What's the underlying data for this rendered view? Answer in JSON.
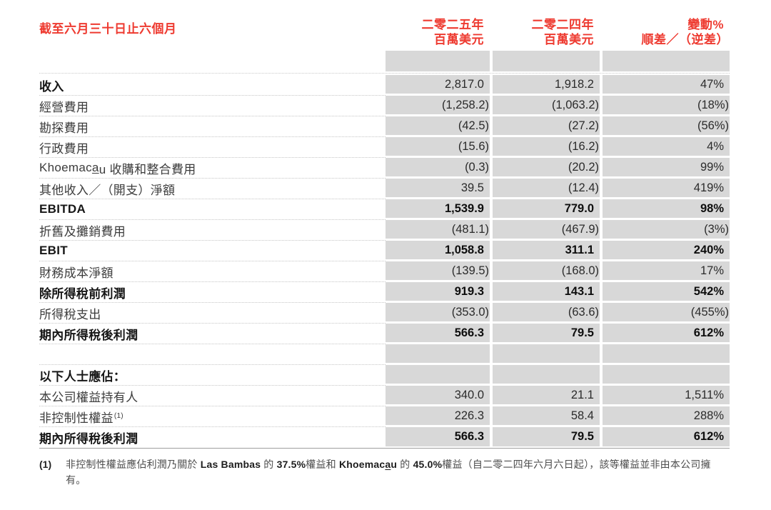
{
  "colors": {
    "accent_red": "#ee3a30",
    "cell_gray": "#d8d8d8"
  },
  "table": {
    "title": "截至六月三十日止六個月",
    "columns": [
      {
        "line1": "二零二五年",
        "line2": "百萬美元"
      },
      {
        "line1": "二零二四年",
        "line2": "百萬美元"
      },
      {
        "line1": "變動%",
        "line2": "順差／（逆差）"
      }
    ],
    "rows": [
      {
        "label": "收入",
        "label_bold": true,
        "v2025": "2,817.0",
        "v2024": "1,918.2",
        "change": "47%"
      },
      {
        "label": "經營費用",
        "v2025": "(1,258.2)",
        "v2024": "(1,063.2)",
        "change": "(18%)"
      },
      {
        "label": "勘探費用",
        "v2025": "(42.5)",
        "v2024": "(27.2)",
        "change": "(56%)"
      },
      {
        "label": "行政費用",
        "v2025": "(15.6)",
        "v2024": "(16.2)",
        "change": "4%"
      },
      {
        "label_parts": [
          {
            "t": "Khoemac"
          },
          {
            "t": "a",
            "u": true
          },
          {
            "t": "u 收購和整合費用"
          }
        ],
        "v2025": "(0.3)",
        "v2024": "(20.2)",
        "change": "99%"
      },
      {
        "label": "其他收入／（開支）淨額",
        "v2025": "39.5",
        "v2024": "(12.4)",
        "change": "419%"
      },
      {
        "label": "EBITDA",
        "label_bold": true,
        "values_bold": true,
        "v2025": "1,539.9",
        "v2024": "779.0",
        "change": "98%"
      },
      {
        "label": "折舊及攤銷費用",
        "v2025": "(481.1)",
        "v2024": "(467.9)",
        "change": "(3%)"
      },
      {
        "label": "EBIT",
        "label_bold": true,
        "values_bold": true,
        "v2025": "1,058.8",
        "v2024": "311.1",
        "change": "240%"
      },
      {
        "label": "財務成本淨額",
        "v2025": "(139.5)",
        "v2024": "(168.0)",
        "change": "17%"
      },
      {
        "label": "除所得稅前利潤",
        "label_bold": true,
        "values_bold": true,
        "v2025": "919.3",
        "v2024": "143.1",
        "change": "542%"
      },
      {
        "label": "所得稅支出",
        "v2025": "(353.0)",
        "v2024": "(63.6)",
        "change": "(455%)"
      },
      {
        "label": "期內所得稅後利潤",
        "label_bold": true,
        "values_bold": true,
        "v2025": "566.3",
        "v2024": "79.5",
        "change": "612%"
      },
      {
        "spacer": true
      },
      {
        "label": "以下人士應佔：",
        "label_bold": true
      },
      {
        "label": "本公司權益持有人",
        "v2025": "340.0",
        "v2024": "21.1",
        "change": "1,511%"
      },
      {
        "label": "非控制性權益",
        "sup": "(1)",
        "v2025": "226.3",
        "v2024": "58.4",
        "change": "288%"
      },
      {
        "label": "期內所得稅後利潤",
        "label_bold": true,
        "values_bold": true,
        "last": true,
        "v2025": "566.3",
        "v2024": "79.5",
        "change": "612%"
      }
    ]
  },
  "footnote": {
    "marker": "(1)",
    "parts": [
      {
        "t": "非控制性權益應佔利潤乃關於 "
      },
      {
        "t": "Las Bambas",
        "strong": true
      },
      {
        "t": " 的 "
      },
      {
        "t": "37.5%",
        "strong": true
      },
      {
        "t": "權益和 "
      },
      {
        "t": "Khoemac",
        "strong": true
      },
      {
        "t": "a",
        "strong": true,
        "u": true
      },
      {
        "t": "u",
        "strong": true
      },
      {
        "t": " 的 "
      },
      {
        "t": "45.0%",
        "strong": true
      },
      {
        "t": "權益（自二零二四年六月六日起），該等權益並非由本公司擁有。"
      }
    ]
  }
}
